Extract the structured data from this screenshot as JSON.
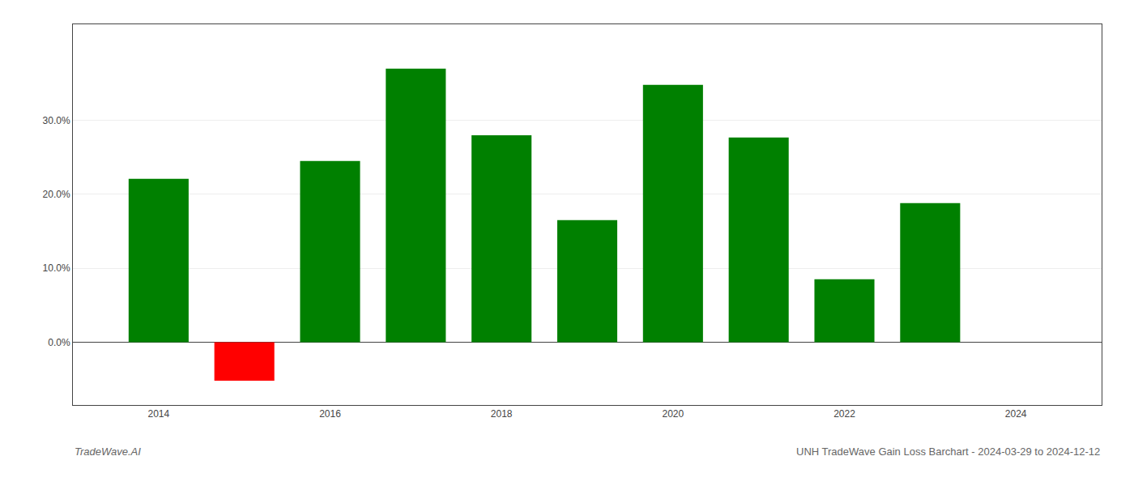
{
  "chart_data": {
    "type": "bar",
    "x": [
      2014,
      2015,
      2016,
      2017,
      2018,
      2019,
      2020,
      2021,
      2022,
      2023
    ],
    "values": [
      0.221,
      -0.052,
      0.245,
      0.37,
      0.28,
      0.165,
      0.348,
      0.277,
      0.085,
      0.188
    ],
    "colors": [
      "#008000",
      "#ff0000",
      "#008000",
      "#008000",
      "#008000",
      "#008000",
      "#008000",
      "#008000",
      "#008000",
      "#008000"
    ],
    "ylim": [
      -0.085,
      0.43
    ],
    "yticks": [
      {
        "value": 0.0,
        "label": "0.0%"
      },
      {
        "value": 0.1,
        "label": "10.0%"
      },
      {
        "value": 0.2,
        "label": "20.0%"
      },
      {
        "value": 0.3,
        "label": "30.0%"
      }
    ],
    "xlim": [
      2013.0,
      2025.0
    ],
    "xticks": [
      2014,
      2016,
      2018,
      2020,
      2022,
      2024
    ],
    "grid": true,
    "annotations": [
      "TradeWave.AI",
      "UNH TradeWave Gain Loss Barchart - 2024-03-29 to 2024-12-12"
    ]
  }
}
